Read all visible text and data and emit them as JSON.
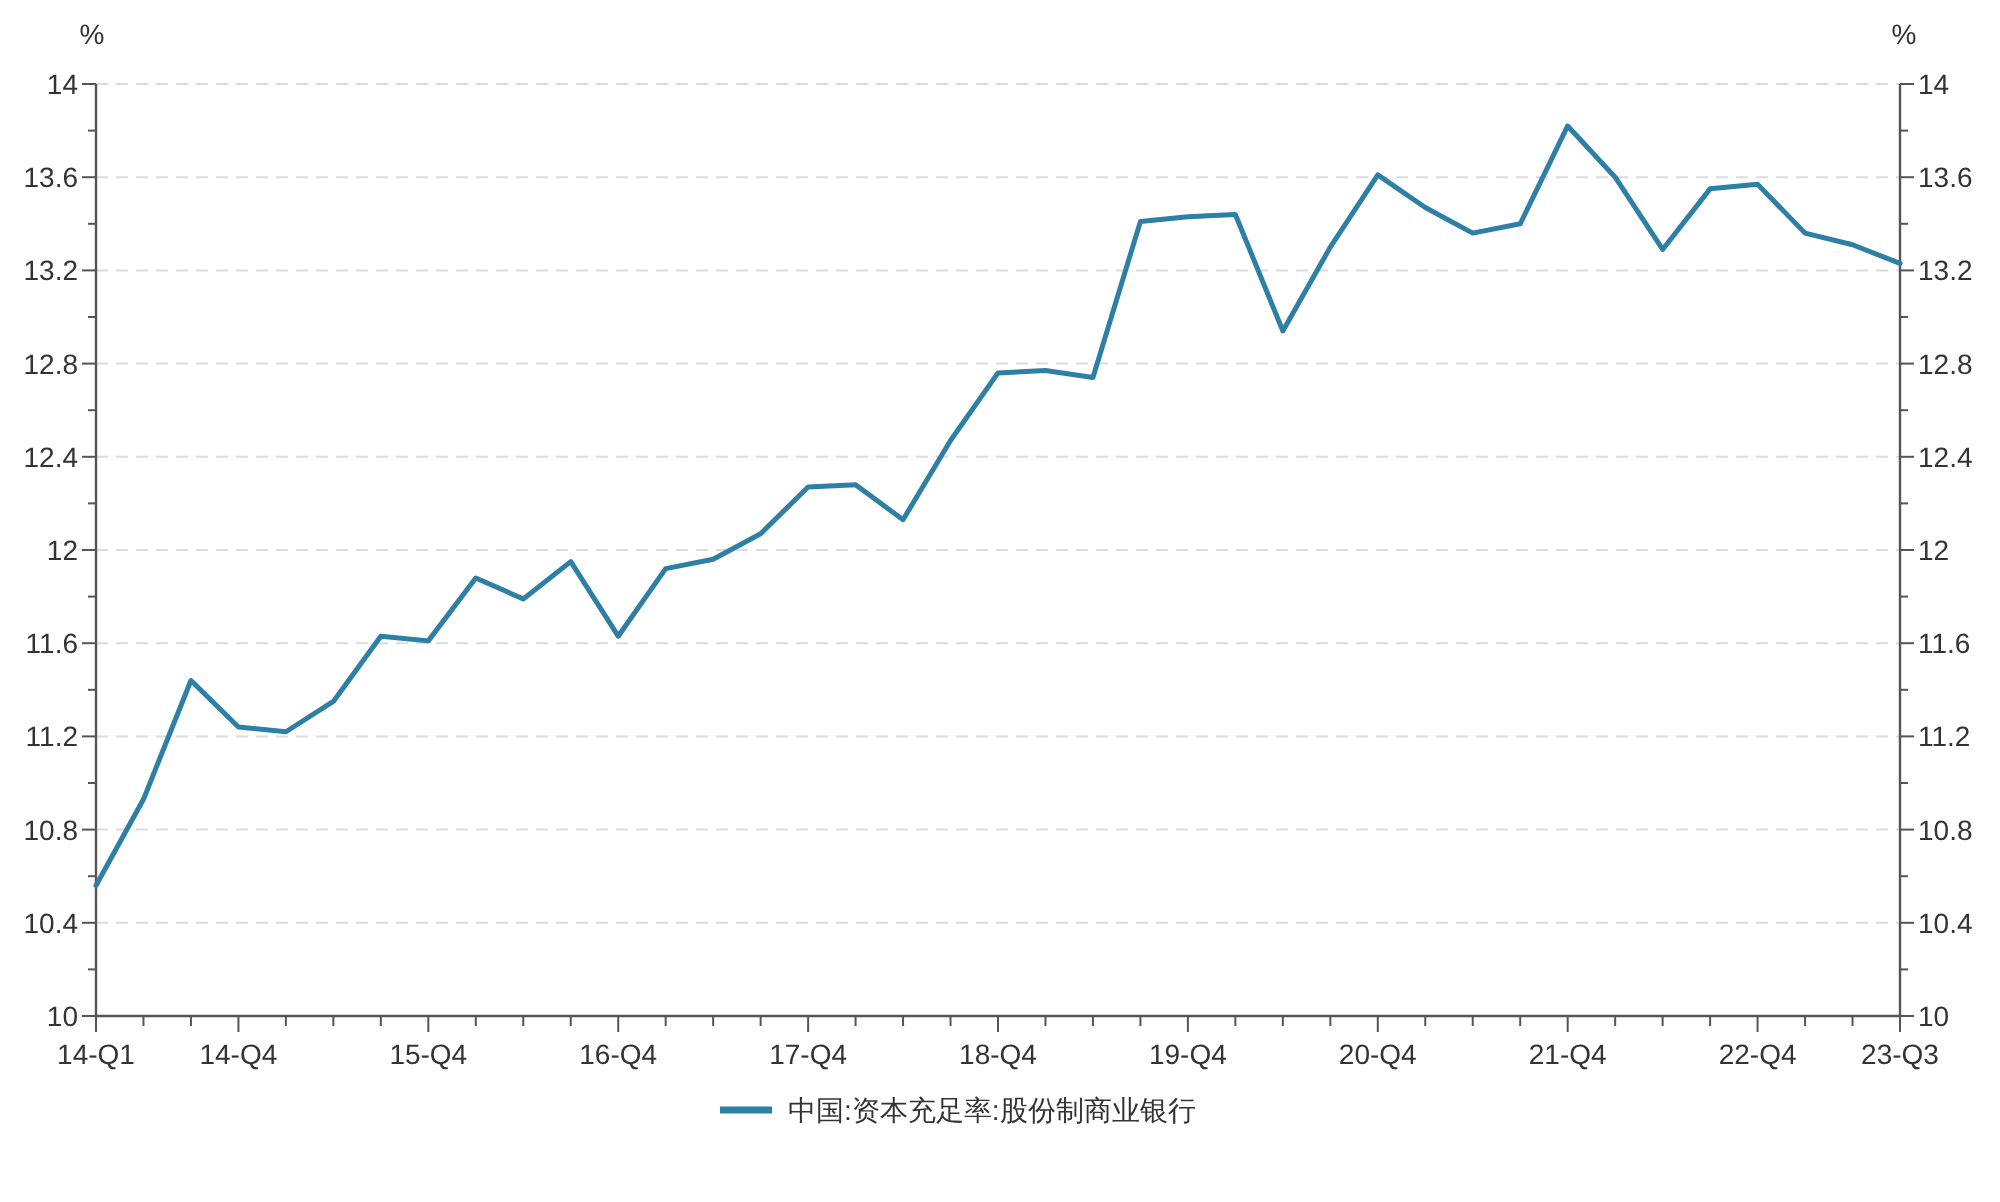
{
  "chart_data": {
    "type": "line",
    "categories": [
      "14-Q1",
      null,
      null,
      "14-Q4",
      null,
      null,
      null,
      "15-Q4",
      null,
      null,
      null,
      "16-Q4",
      null,
      null,
      null,
      "17-Q4",
      null,
      null,
      null,
      "18-Q4",
      null,
      null,
      null,
      "19-Q4",
      null,
      null,
      null,
      "20-Q4",
      null,
      null,
      null,
      "21-Q4",
      null,
      null,
      null,
      "22-Q4",
      null,
      null,
      "23-Q3"
    ],
    "series": [
      {
        "name": "中国:资本充足率:股份制商业银行",
        "color": "#2e7fa5",
        "values": [
          10.56,
          10.93,
          11.44,
          11.24,
          11.22,
          11.35,
          11.63,
          11.61,
          11.88,
          11.79,
          11.95,
          11.63,
          11.92,
          11.96,
          12.07,
          12.27,
          12.28,
          12.13,
          12.47,
          12.76,
          12.77,
          12.74,
          13.41,
          13.43,
          13.44,
          12.94,
          13.3,
          13.61,
          13.47,
          13.36,
          13.4,
          13.82,
          13.6,
          13.29,
          13.55,
          13.57,
          13.36,
          13.31,
          13.23
        ]
      }
    ],
    "ylabel": "%",
    "y2label": "%",
    "ylim": [
      10,
      14
    ],
    "yticks": [
      10,
      {
        "value": 10.2,
        "label": null
      },
      10.4,
      {
        "value": 10.6,
        "label": null
      },
      10.8,
      {
        "value": 11,
        "label": null
      },
      11.2,
      {
        "value": 11.4,
        "label": null
      },
      11.6,
      {
        "value": 11.8,
        "label": null
      },
      12,
      {
        "value": 12.2,
        "label": null
      },
      12.4,
      {
        "value": 12.6,
        "label": null
      },
      12.8,
      {
        "value": 13,
        "label": null
      },
      13.2,
      {
        "value": 13.4,
        "label": null
      },
      13.6,
      {
        "value": 13.8,
        "label": null
      },
      14
    ],
    "y2lim": [
      10,
      14
    ],
    "y2ticks": [
      10,
      {
        "value": 10.2,
        "label": null
      },
      10.4,
      {
        "value": 10.6,
        "label": null
      },
      10.8,
      {
        "value": 11,
        "label": null
      },
      11.2,
      {
        "value": 11.4,
        "label": null
      },
      11.6,
      {
        "value": 11.8,
        "label": null
      },
      12,
      {
        "value": 12.2,
        "label": null
      },
      12.4,
      {
        "value": 12.6,
        "label": null
      },
      12.8,
      {
        "value": 13,
        "label": null
      },
      13.2,
      {
        "value": 13.4,
        "label": null
      },
      13.6,
      {
        "value": 13.8,
        "label": null
      },
      14
    ],
    "grid": "y",
    "legend": "bottom"
  }
}
